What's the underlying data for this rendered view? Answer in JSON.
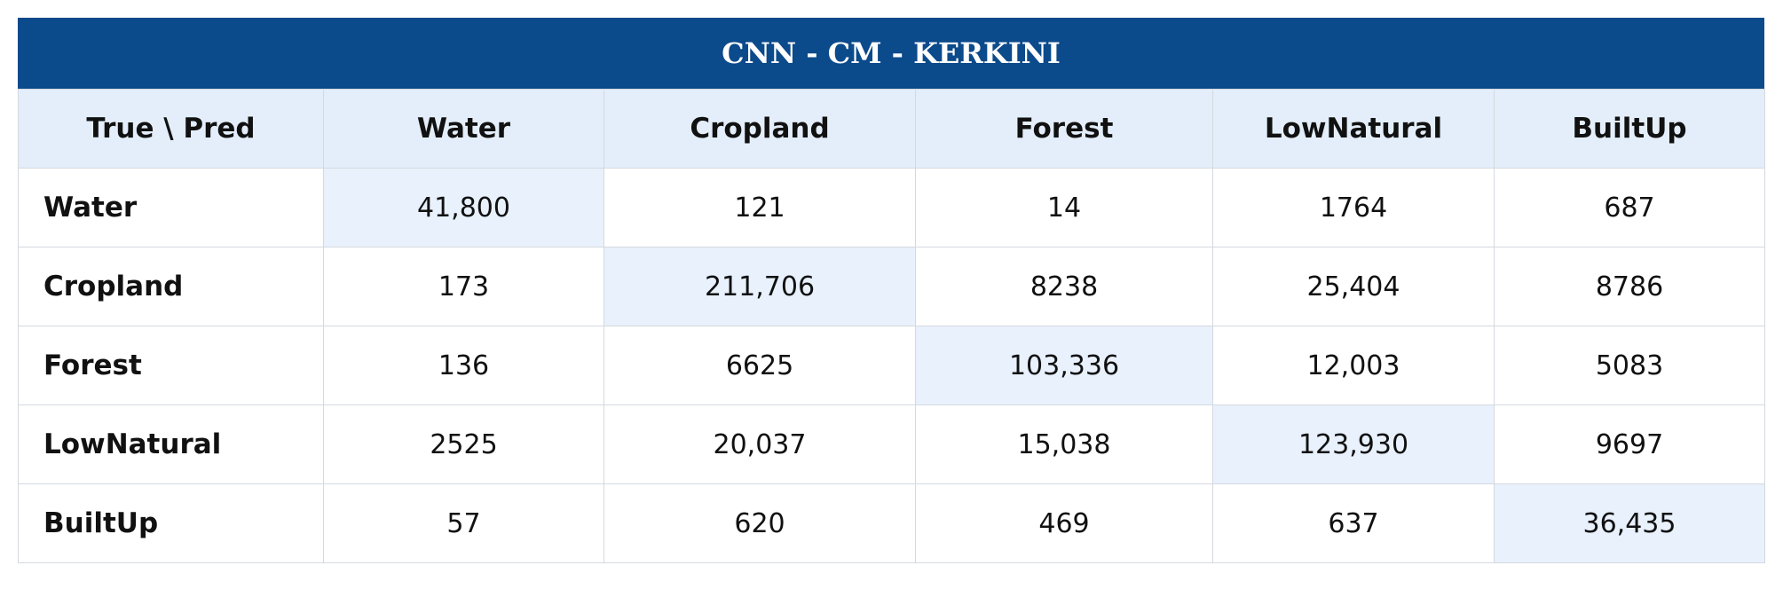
{
  "title": "CNN - CM - KERKINI",
  "table": {
    "header": [
      "True \\ Pred",
      "Water",
      "Cropland",
      "Forest",
      "LowNatural",
      "BuiltUp"
    ],
    "rows": [
      [
        "Water",
        "41,800",
        "121",
        "14",
        "1764",
        "687"
      ],
      [
        "Cropland",
        "173",
        "211,706",
        "8238",
        "25,404",
        "8786"
      ],
      [
        "Forest",
        "136",
        "6625",
        "103,336",
        "12,003",
        "5083"
      ],
      [
        "LowNatural",
        "2525",
        "20,037",
        "15,038",
        "123,930",
        "9697"
      ],
      [
        "BuiltUp",
        "57",
        "620",
        "469",
        "637",
        "36,435"
      ]
    ]
  }
}
